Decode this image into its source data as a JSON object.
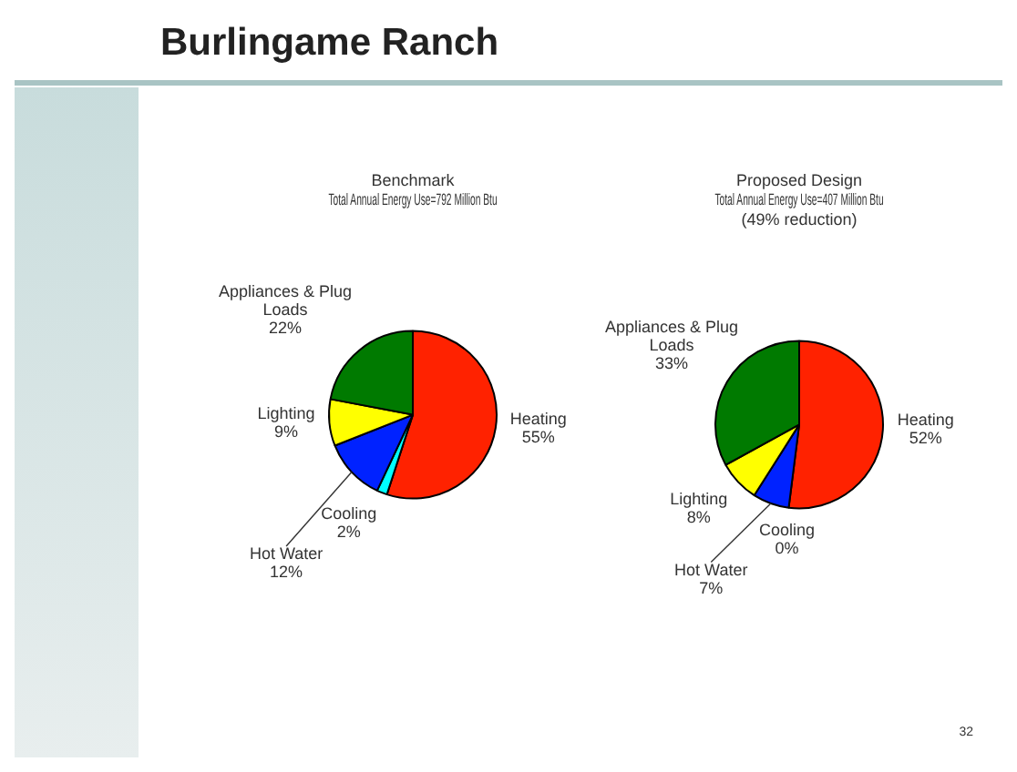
{
  "chart_data": [
    {
      "type": "other",
      "title": "Burlingame Ranch",
      "annotations": [
        "32"
      ]
    },
    {
      "type": "pie",
      "title": "Benchmark",
      "subtitle": "Total Annual Energy Use=792 Million Btu",
      "categories": [
        "Heating",
        "Cooling",
        "Hot Water",
        "Lighting",
        "Appliances & Plug Loads"
      ],
      "values": [
        55,
        2,
        12,
        9,
        22
      ],
      "value_labels": [
        "55%",
        "2%",
        "12%",
        "9%",
        "22%"
      ],
      "colors": [
        "#ff2200",
        "#00ffff",
        "#0022ff",
        "#ffff00",
        "#007a00"
      ]
    },
    {
      "type": "pie",
      "title": "Proposed Design",
      "subtitle": "Total Annual Energy Use=407 Million Btu\n(49% reduction)",
      "categories": [
        "Heating",
        "Cooling",
        "Hot Water",
        "Lighting",
        "Appliances & Plug Loads"
      ],
      "values": [
        52,
        0,
        7,
        8,
        33
      ],
      "value_labels": [
        "52%",
        "0%",
        "7%",
        "8%",
        "33%"
      ],
      "colors": [
        "#ff2200",
        "#00ffff",
        "#0022ff",
        "#ffff00",
        "#007a00"
      ]
    }
  ]
}
